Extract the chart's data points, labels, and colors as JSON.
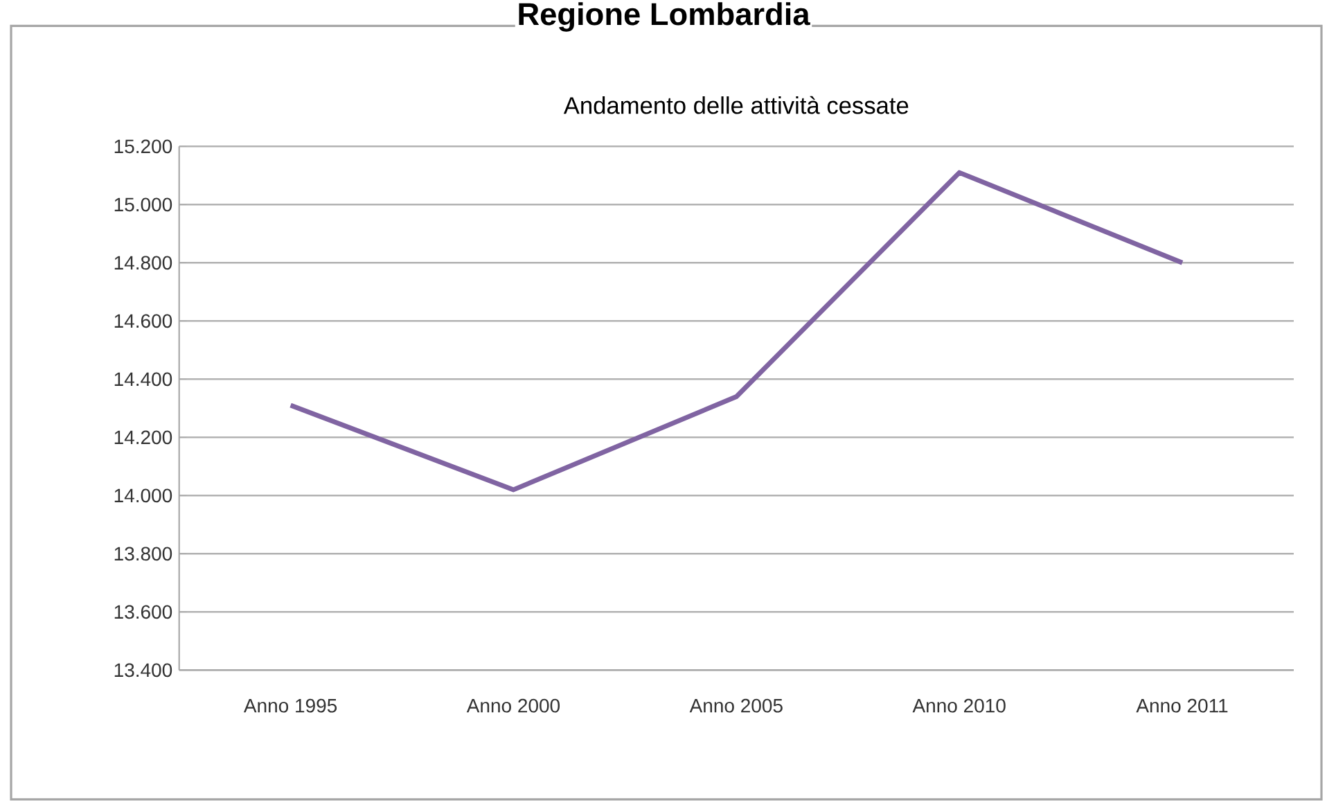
{
  "chart_data": {
    "type": "line",
    "title": "Regione Lombardia",
    "subtitle": "Andamento delle attività cessate",
    "categories": [
      "Anno 1995",
      "Anno 2000",
      "Anno 2005",
      "Anno 2010",
      "Anno 2011"
    ],
    "series": [
      {
        "color": "#8064a2",
        "values": [
          14310,
          14020,
          14340,
          15110,
          14800
        ]
      }
    ],
    "ylim": [
      13400,
      15200
    ],
    "yticks": [
      {
        "value": 13400,
        "label": "13.400"
      },
      {
        "value": 13600,
        "label": "13.600"
      },
      {
        "value": 13800,
        "label": "13.800"
      },
      {
        "value": 14000,
        "label": "14.000"
      },
      {
        "value": 14200,
        "label": "14.200"
      },
      {
        "value": 14400,
        "label": "14.400"
      },
      {
        "value": 14600,
        "label": "14.600"
      },
      {
        "value": 14800,
        "label": "14.800"
      },
      {
        "value": 15000,
        "label": "15.000"
      },
      {
        "value": 15200,
        "label": "15.200"
      }
    ],
    "grid": "y",
    "marker": "none",
    "line_style": "solid"
  }
}
